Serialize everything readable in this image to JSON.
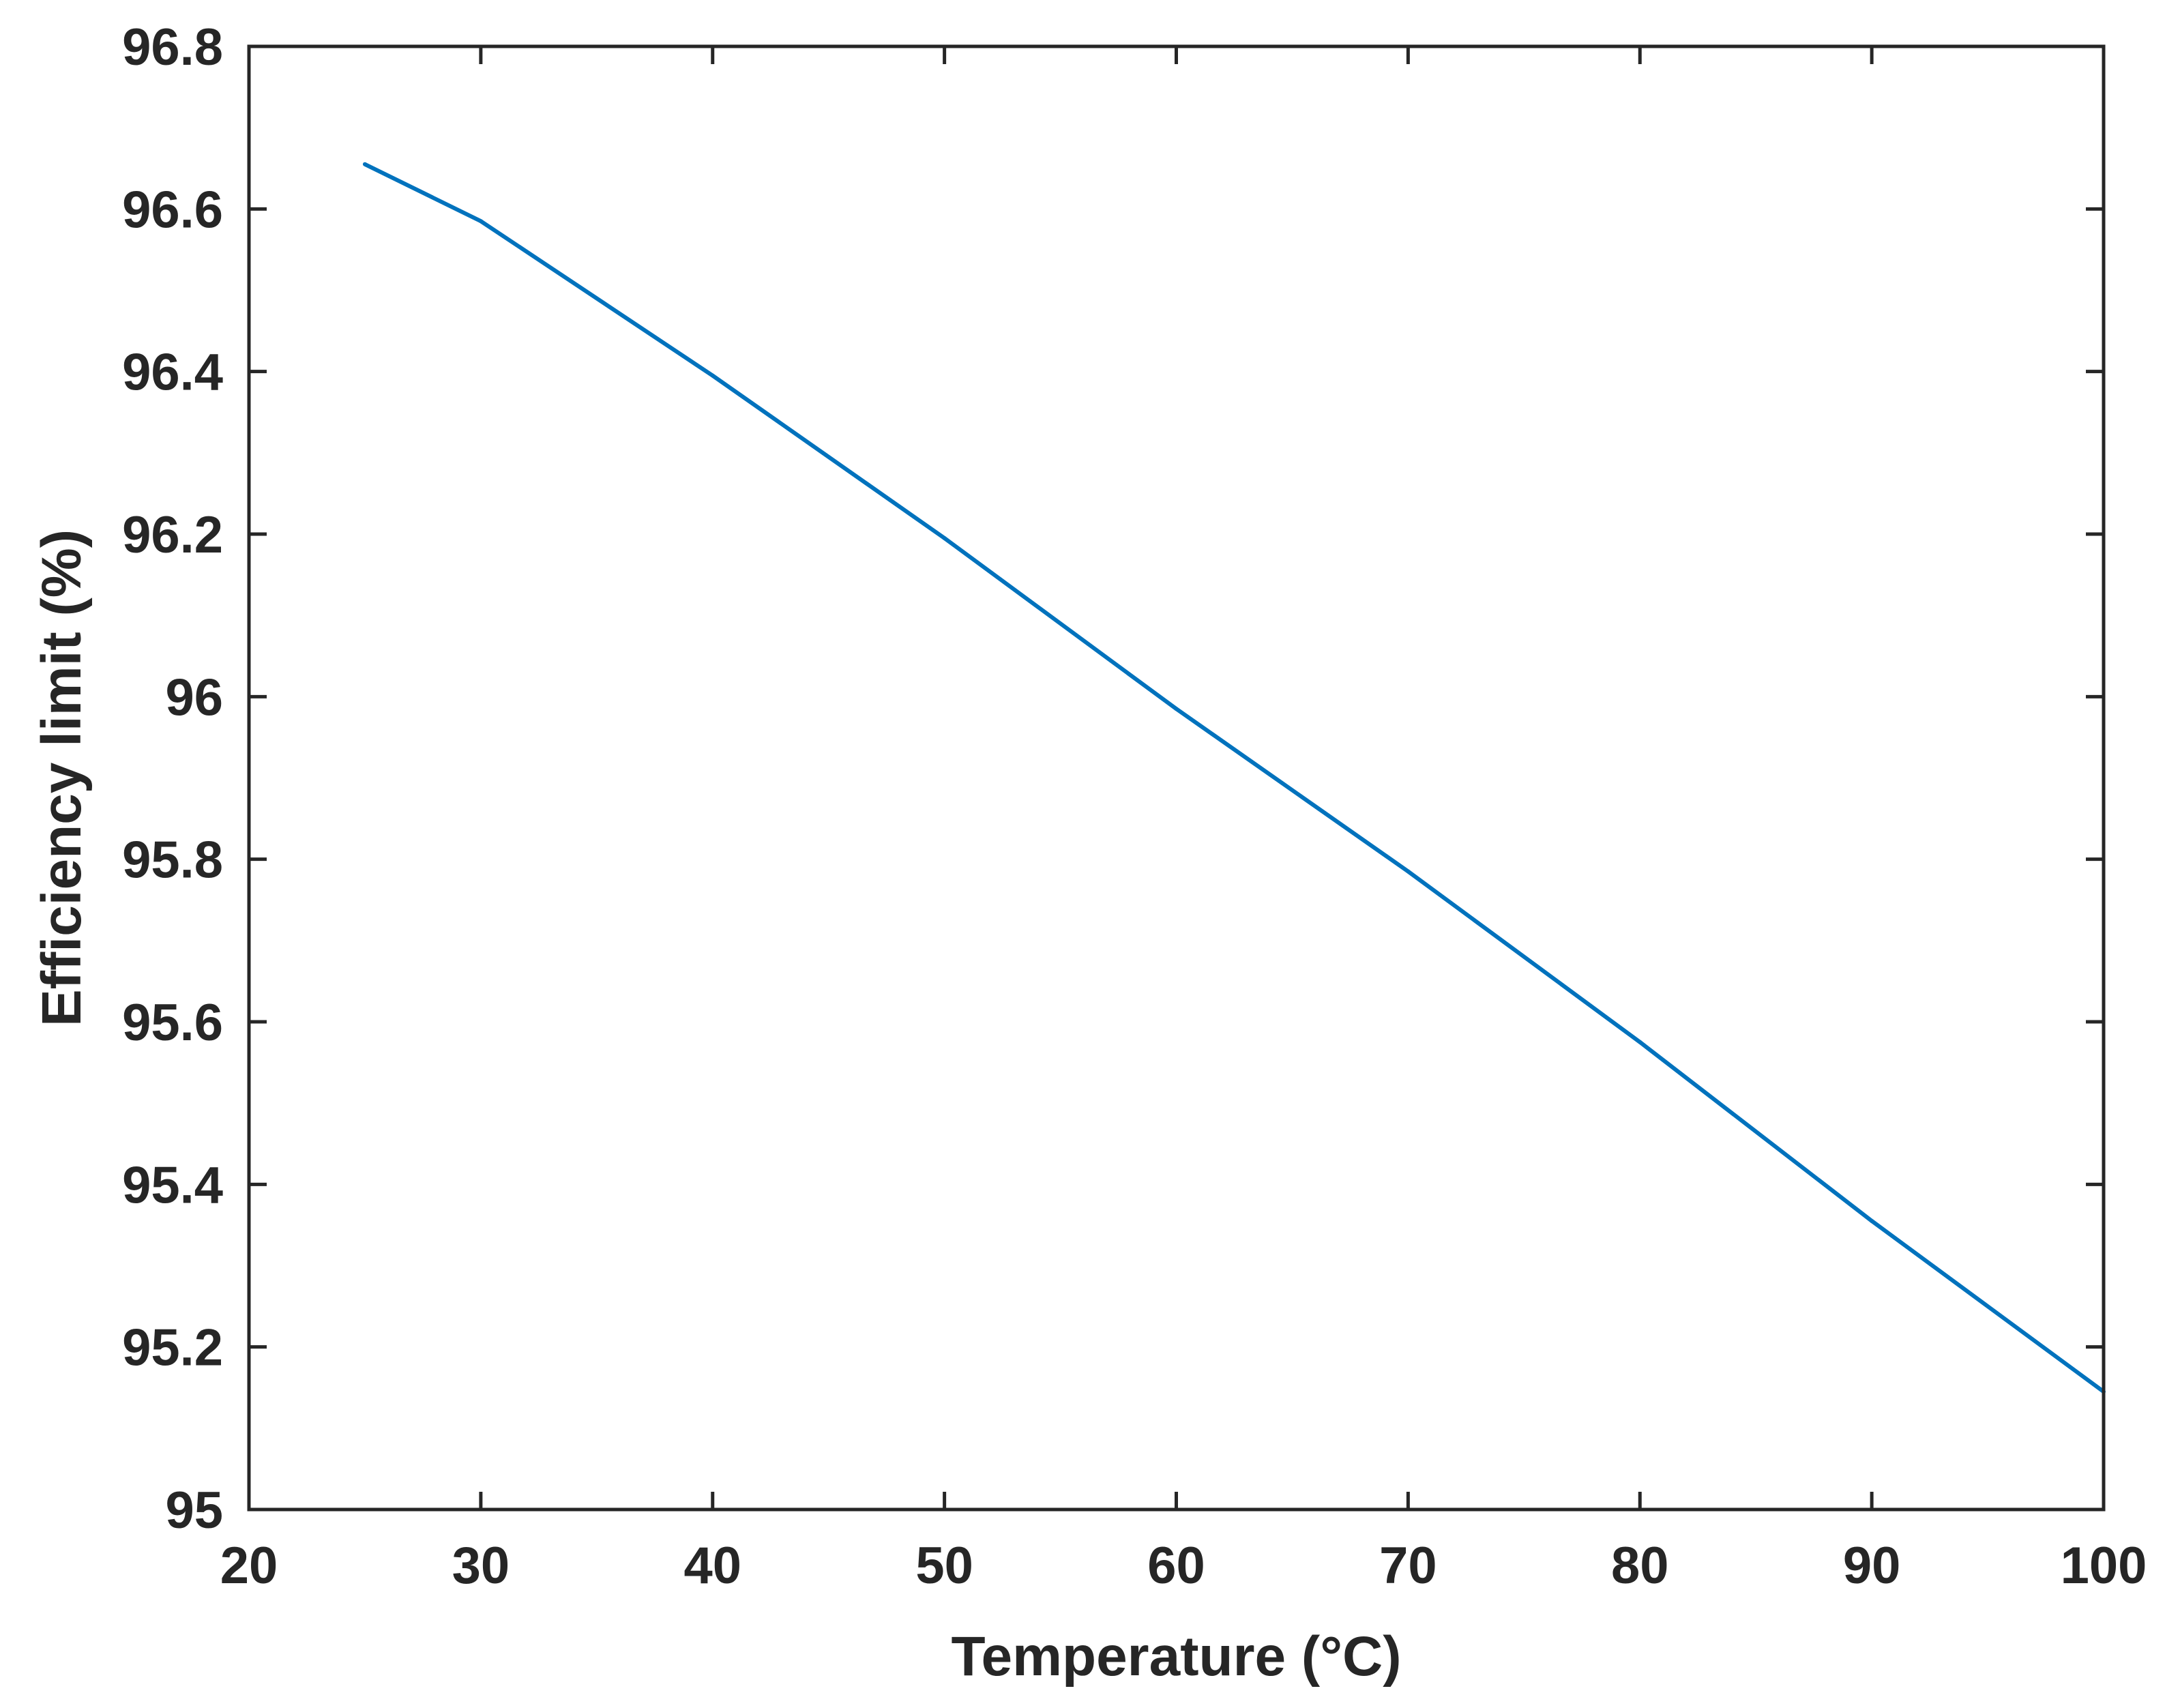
{
  "chart_data": {
    "type": "line",
    "title": "",
    "xlabel": "Temperature (°C)",
    "ylabel": "Efficiency limit (%)",
    "xlim": [
      20,
      100
    ],
    "ylim": [
      95,
      96.8
    ],
    "xticks": [
      "20",
      "30",
      "40",
      "50",
      "60",
      "70",
      "80",
      "90",
      "100"
    ],
    "yticks": [
      "95",
      "95.2",
      "95.4",
      "95.6",
      "95.8",
      "96",
      "96.2",
      "96.4",
      "96.6",
      "96.8"
    ],
    "grid": false,
    "box": true,
    "series": [
      {
        "color": "#0072BD",
        "x": [
          25,
          30,
          40,
          50,
          60,
          70,
          80,
          90,
          100
        ],
        "y": [
          96.655,
          96.585,
          96.395,
          96.195,
          95.985,
          95.785,
          95.575,
          95.355,
          95.145
        ]
      }
    ]
  },
  "colors": {
    "axis": "#262626",
    "line": "#0072BD"
  }
}
